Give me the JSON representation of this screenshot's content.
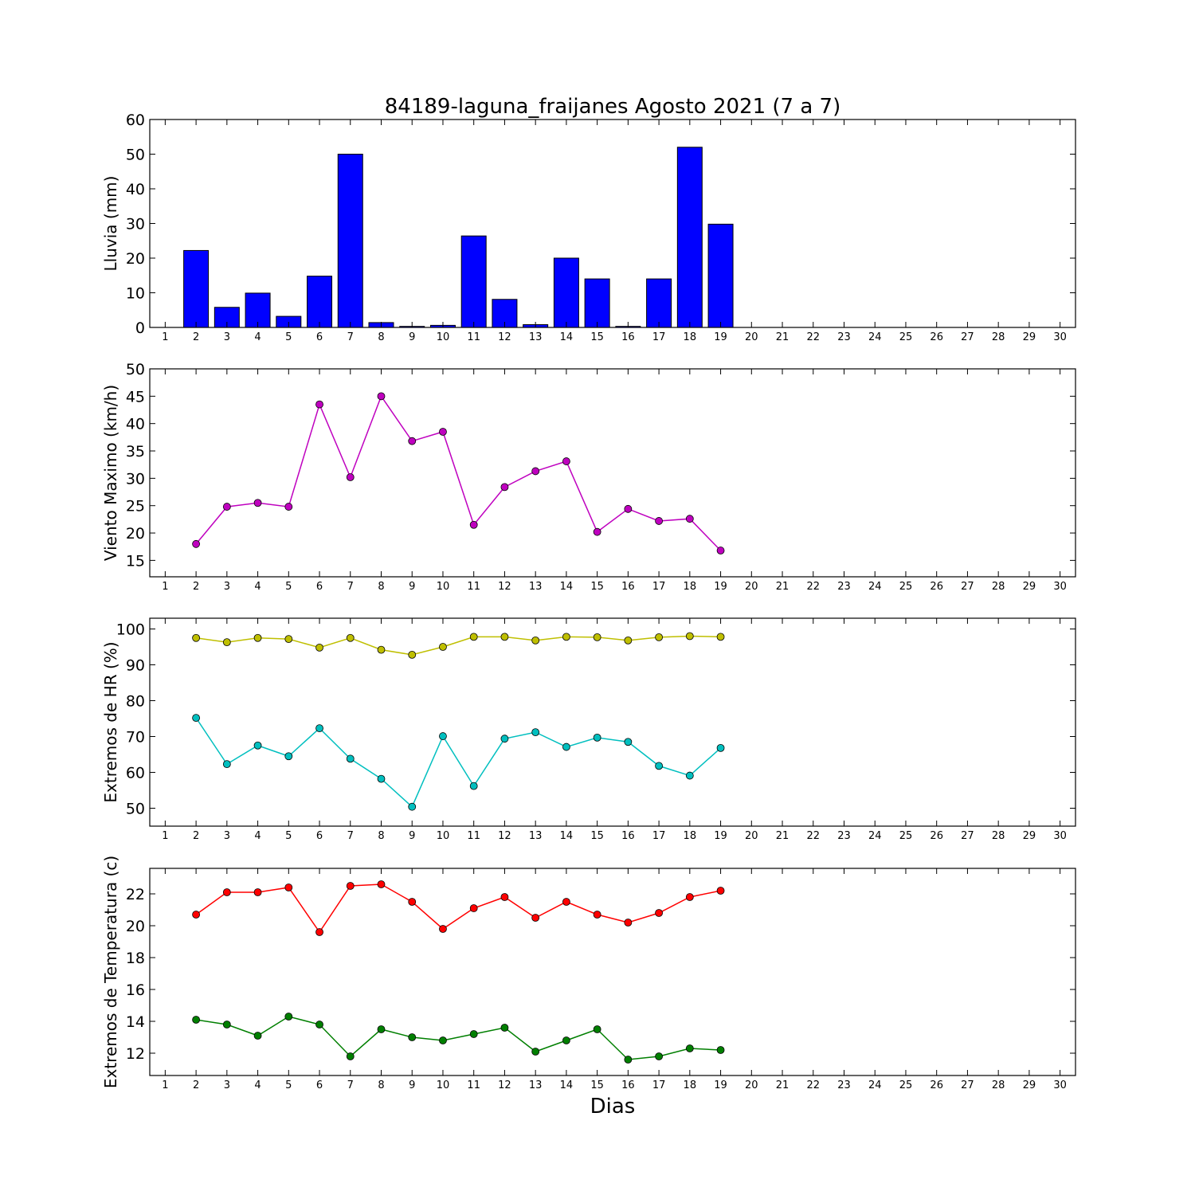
{
  "figure": {
    "title": "84189-laguna_fraijanes Agosto 2021  (7 a 7)",
    "xlabel": "Dias"
  },
  "chart_data": [
    {
      "type": "bar",
      "ylabel": "Lluvia (mm)",
      "x": [
        1,
        2,
        3,
        4,
        5,
        6,
        7,
        8,
        9,
        10,
        11,
        12,
        13,
        14,
        15,
        16,
        17,
        18,
        19,
        20,
        21,
        22,
        23,
        24,
        25,
        26,
        27,
        28,
        29,
        30
      ],
      "values": [
        0,
        22.2,
        5.8,
        9.9,
        3.2,
        14.8,
        50.0,
        1.4,
        0.3,
        0.6,
        26.4,
        8.1,
        0.8,
        20.0,
        14.0,
        0.3,
        14.0,
        52.0,
        29.8,
        0,
        0,
        0,
        0,
        0,
        0,
        0,
        0,
        0,
        0,
        0
      ],
      "ylim": [
        0,
        60
      ],
      "yticks": [
        0,
        10,
        20,
        30,
        40,
        50,
        60
      ],
      "color": "#0000ff"
    },
    {
      "type": "line",
      "ylabel": "Viento Maximo (km/h)",
      "series": [
        {
          "color": "#bf00bf",
          "x": [
            2,
            3,
            4,
            5,
            6,
            7,
            8,
            9,
            10,
            11,
            12,
            13,
            14,
            15,
            16,
            17,
            18,
            19
          ],
          "values": [
            18.0,
            24.8,
            25.5,
            24.8,
            43.5,
            30.2,
            45.0,
            36.8,
            38.5,
            21.5,
            28.4,
            31.3,
            33.1,
            20.2,
            24.4,
            22.2,
            22.6,
            16.8
          ]
        }
      ],
      "ylim": [
        12,
        50
      ],
      "yticks": [
        15,
        20,
        25,
        30,
        35,
        40,
        45,
        50
      ]
    },
    {
      "type": "line",
      "ylabel": "Extremos de HR (%)",
      "series": [
        {
          "color": "#bfbf00",
          "x": [
            2,
            3,
            4,
            5,
            6,
            7,
            8,
            9,
            10,
            11,
            12,
            13,
            14,
            15,
            16,
            17,
            18,
            19
          ],
          "values": [
            97.5,
            96.3,
            97.5,
            97.2,
            94.8,
            97.5,
            94.2,
            92.8,
            95.0,
            97.8,
            97.8,
            96.8,
            97.8,
            97.7,
            96.8,
            97.7,
            98.0,
            97.8
          ]
        },
        {
          "color": "#00bfbf",
          "x": [
            2,
            3,
            4,
            5,
            6,
            7,
            8,
            9,
            10,
            11,
            12,
            13,
            14,
            15,
            16,
            17,
            18,
            19
          ],
          "values": [
            75.2,
            62.3,
            67.5,
            64.5,
            72.3,
            63.8,
            58.2,
            50.4,
            70.1,
            56.2,
            69.4,
            71.2,
            67.1,
            69.7,
            68.5,
            61.8,
            59.1,
            66.8
          ]
        }
      ],
      "ylim": [
        45,
        103
      ],
      "yticks": [
        50,
        60,
        70,
        80,
        90,
        100
      ]
    },
    {
      "type": "line",
      "ylabel": "Extremos de Temperatura (c)",
      "series": [
        {
          "color": "#ff0000",
          "x": [
            2,
            3,
            4,
            5,
            6,
            7,
            8,
            9,
            10,
            11,
            12,
            13,
            14,
            15,
            16,
            17,
            18,
            19
          ],
          "values": [
            20.7,
            22.1,
            22.1,
            22.4,
            19.6,
            22.5,
            22.6,
            21.5,
            19.8,
            21.1,
            21.8,
            20.5,
            21.5,
            20.7,
            20.2,
            20.8,
            21.8,
            22.2
          ]
        },
        {
          "color": "#007f00",
          "x": [
            2,
            3,
            4,
            5,
            6,
            7,
            8,
            9,
            10,
            11,
            12,
            13,
            14,
            15,
            16,
            17,
            18,
            19
          ],
          "values": [
            14.1,
            13.8,
            13.1,
            14.3,
            13.8,
            11.8,
            13.5,
            13.0,
            12.8,
            13.2,
            13.6,
            12.1,
            12.8,
            13.5,
            11.6,
            11.8,
            12.3,
            12.2
          ]
        }
      ],
      "ylim": [
        10.6,
        23.6
      ],
      "yticks": [
        12,
        14,
        16,
        18,
        20,
        22
      ]
    }
  ]
}
